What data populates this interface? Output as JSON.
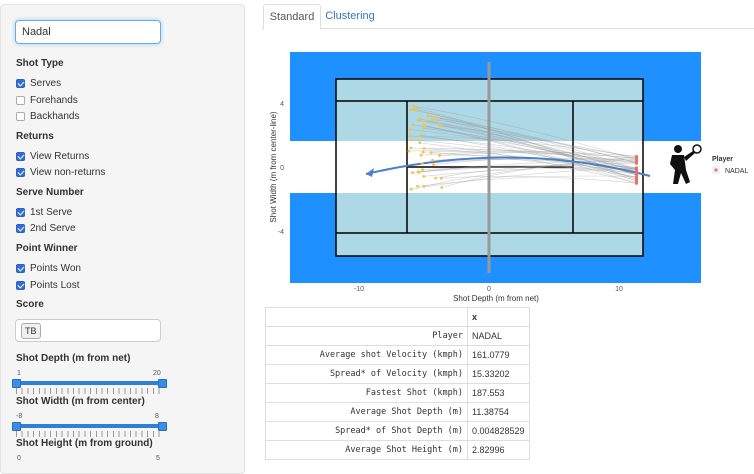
{
  "player_filter": {
    "value": "Nadal"
  },
  "sections": {
    "shot_type": "Shot Type",
    "returns": "Returns",
    "serve_number": "Serve Number",
    "point_winner": "Point Winner",
    "score": "Score"
  },
  "checkboxes": {
    "serves": "Serves",
    "forehands": "Forehands",
    "backhands": "Backhands",
    "view_returns": "View Returns",
    "view_non_returns": "View non-returns",
    "first_serve": "1st Serve",
    "second_serve": "2nd Serve",
    "points_won": "Points Won",
    "points_lost": "Points Lost"
  },
  "score_tag": "TB",
  "sliders": {
    "depth": {
      "label": "Shot Depth (m from net)",
      "min": "1",
      "max": "20"
    },
    "width": {
      "label": "Shot Width (m from center)",
      "min": "-8",
      "max": "8"
    },
    "height": {
      "label": "Shot Height (m from ground)",
      "min": "0",
      "max": "5"
    }
  },
  "tabs": {
    "standard": "Standard",
    "clustering": "Clustering"
  },
  "chart": {
    "ylabel": "Shot Width (m from center-line)",
    "xlabel": "Shot Depth (m from net)",
    "xticks": [
      "-10",
      "0",
      "10"
    ],
    "yticks": [
      "4",
      "0",
      "-4"
    ],
    "legend_title": "Player",
    "legend_item": "NADAL"
  },
  "table": {
    "header": "x",
    "rows": [
      {
        "label": "Player",
        "value": "NADAL"
      },
      {
        "label": "Average shot Velocity (kmph)",
        "value": "161.0779"
      },
      {
        "label": "Spread* of Velocity (kmph)",
        "value": "15.33202"
      },
      {
        "label": "Fastest Shot (kmph)",
        "value": "187.553"
      },
      {
        "label": "Average Shot Depth (m)",
        "value": "11.38754"
      },
      {
        "label": "Spread* of Shot Depth (m)",
        "value": "0.004828529"
      },
      {
        "label": "Average Shot Height (m)",
        "value": "2.82996"
      }
    ]
  },
  "colors": {
    "court_outer": "#1e90ff",
    "court_inner": "#add8e6",
    "accent": "#2f6fd6"
  }
}
